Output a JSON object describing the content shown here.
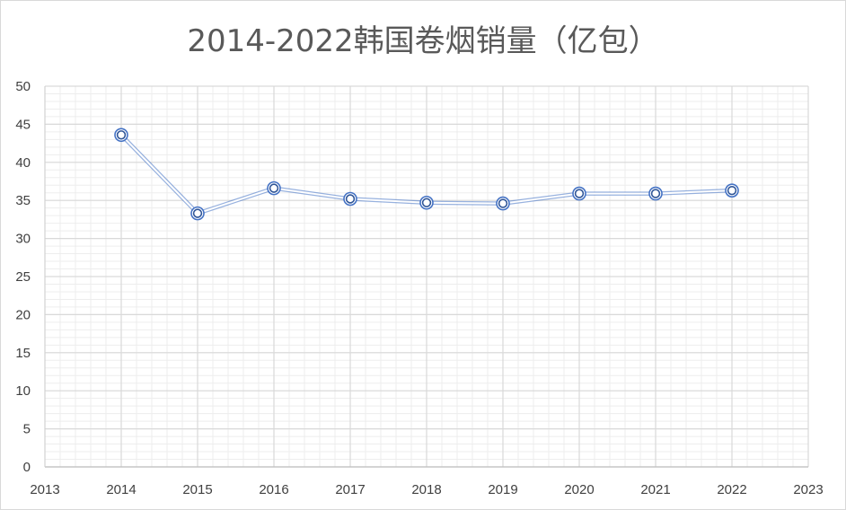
{
  "chart_data": {
    "type": "scatter",
    "title": "2014-2022韩国卷烟销量（亿包）",
    "xlabel": "",
    "ylabel": "",
    "xlim": [
      2013,
      2023
    ],
    "ylim": [
      0,
      50
    ],
    "x_ticks": [
      "2013",
      "2014",
      "2015",
      "2016",
      "2017",
      "2018",
      "2019",
      "2020",
      "2021",
      "2022",
      "2023"
    ],
    "y_ticks": [
      "0",
      "5",
      "10",
      "15",
      "20",
      "25",
      "30",
      "35",
      "40",
      "45",
      "50"
    ],
    "x": [
      2014,
      2015,
      2016,
      2017,
      2018,
      2019,
      2020,
      2021,
      2022
    ],
    "y": [
      43.6,
      33.3,
      36.6,
      35.2,
      34.7,
      34.6,
      35.9,
      35.9,
      36.3
    ],
    "grid": true,
    "minor_grid": true,
    "legend": "none",
    "series_color": "#4472c4"
  }
}
